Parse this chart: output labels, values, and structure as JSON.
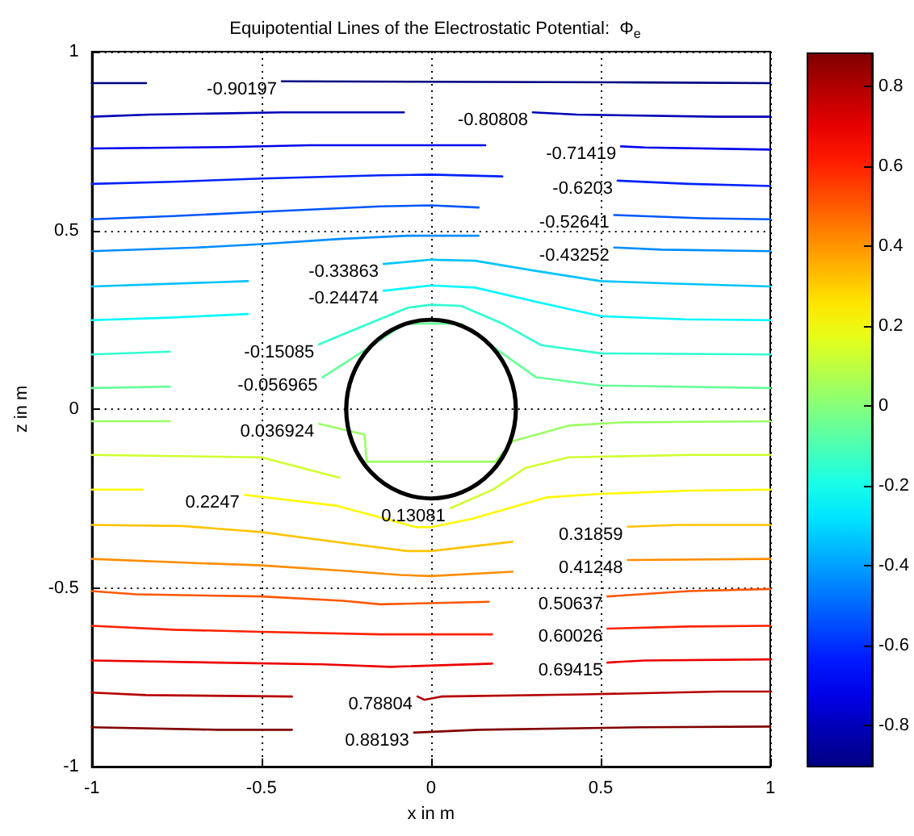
{
  "chart_data": {
    "type": "line",
    "title": "Equipotential Lines of the Electrostatic Potential:  Φ$_{e}$",
    "xlabel": "x in m",
    "ylabel": "z in m",
    "xlim": [
      -1,
      1
    ],
    "xticks": [
      -1,
      -0.5,
      0,
      0.5,
      1
    ],
    "ylim": [
      -1,
      1
    ],
    "yticks": [
      -1,
      -0.5,
      0,
      0.5,
      1
    ],
    "grid": true,
    "legend": false,
    "marker": "none",
    "line_style": "solid",
    "clim": [
      -0.90197,
      0.88193
    ],
    "cticks": [
      -0.8,
      -0.6,
      -0.4,
      -0.2,
      0,
      0.2,
      0.4,
      0.6,
      0.8
    ],
    "series": [
      {
        "name": "-0.90197",
        "color": "#000080",
        "x": [
          -1,
          -0.84,
          -0.64,
          -0.44,
          0.61,
          1
        ],
        "values": [
          0.912,
          0.912,
          null,
          0.917,
          0.914,
          0.912
        ]
      },
      {
        "name": "-0.80808",
        "color": "#0000b5",
        "x": [
          -1,
          -0.83,
          -0.44,
          -0.08,
          0.11,
          0.3,
          0.43,
          0.84,
          1
        ],
        "values": [
          0.818,
          0.824,
          0.83,
          0.83,
          null,
          0.83,
          0.824,
          0.818,
          0.818
        ]
      },
      {
        "name": "-0.71419",
        "color": "#0000eb",
        "x": [
          -1,
          -0.6,
          -0.36,
          0.16,
          0.36,
          0.56,
          0.63,
          1
        ],
        "values": [
          0.729,
          0.733,
          0.738,
          0.738,
          null,
          0.735,
          0.732,
          0.726
        ]
      },
      {
        "name": "-0.6203",
        "color": "#0022ff",
        "x": [
          -1,
          -0.76,
          -0.5,
          -0.15,
          0,
          0.21,
          0.38,
          0.55,
          0.76,
          1
        ],
        "values": [
          0.63,
          0.636,
          0.645,
          0.654,
          0.656,
          0.651,
          null,
          0.639,
          0.63,
          0.624
        ]
      },
      {
        "name": "-0.52641",
        "color": "#0057ff",
        "x": [
          -1,
          -0.76,
          -0.5,
          -0.15,
          0,
          0.14,
          0.34,
          0.54,
          0.8,
          1
        ],
        "values": [
          0.531,
          0.54,
          0.552,
          0.567,
          0.57,
          0.564,
          null,
          0.543,
          0.534,
          0.531
        ]
      },
      {
        "name": "-0.43252",
        "color": "#008dff",
        "x": [
          -1,
          -0.69,
          -0.51,
          -0.27,
          -0.07,
          0.14,
          0.34,
          0.54,
          0.68,
          1
        ],
        "values": [
          0.442,
          0.452,
          0.461,
          0.476,
          0.485,
          0.485,
          null,
          0.452,
          0.446,
          0.442
        ]
      },
      {
        "name": "-0.33863",
        "color": "#00c3ff",
        "x": [
          -1,
          -0.54,
          -0.34,
          -0.14,
          0,
          0.13,
          0.3,
          0.5,
          0.72,
          1
        ],
        "values": [
          0.343,
          0.358,
          null,
          0.406,
          0.418,
          0.415,
          0.388,
          0.358,
          0.351,
          0.343
        ]
      },
      {
        "name": "-0.24474",
        "color": "#00f8ff",
        "x": [
          -1,
          -0.77,
          -0.54,
          -0.34,
          -0.14,
          0,
          0.13,
          0.32,
          0.5,
          0.75,
          1
        ],
        "values": [
          0.249,
          0.256,
          0.266,
          null,
          0.331,
          0.346,
          0.34,
          0.298,
          0.26,
          0.251,
          0.249
        ]
      },
      {
        "name": "-0.15085",
        "color": "#2fffd0",
        "x": [
          -1,
          -0.77,
          -0.55,
          -0.33,
          -0.225,
          -0.068,
          0,
          0.088,
          0.213,
          0.324,
          0.5,
          1
        ],
        "values": [
          0.153,
          0.161,
          null,
          0.181,
          0.223,
          0.284,
          0.292,
          0.289,
          0.238,
          0.179,
          0.156,
          0.153
        ]
      },
      {
        "name": "-0.056965",
        "color": "#65ff9a",
        "x": [
          -1,
          -0.77,
          -0.55,
          -0.32,
          -0.21,
          -0.08,
          0,
          0.09,
          0.21,
          0.31,
          0.5,
          1
        ],
        "values": [
          0.059,
          0.063,
          null,
          0.089,
          0.156,
          0.238,
          0.24,
          0.238,
          0.156,
          0.089,
          0.066,
          0.059
        ]
      },
      {
        "name": "0.036924",
        "color": "#9aff65",
        "x": [
          -1,
          -0.77,
          -0.55,
          -0.33,
          -0.196,
          -0.19,
          0.19,
          0.24,
          0.405,
          0.565,
          1
        ],
        "values": [
          -0.034,
          -0.034,
          null,
          -0.041,
          -0.071,
          -0.147,
          -0.147,
          -0.09,
          -0.046,
          -0.037,
          -0.034
        ]
      },
      {
        "name": "0.13081",
        "color": "#d0ff2f",
        "x": [
          -1,
          -0.5,
          -0.27,
          -0.12,
          0.057,
          0.183,
          0.277,
          0.405,
          0.76,
          1
        ],
        "values": [
          -0.128,
          -0.135,
          -0.192,
          null,
          -0.277,
          -0.225,
          -0.165,
          -0.135,
          -0.128,
          -0.128
        ]
      },
      {
        "name": "0.2247",
        "color": "#fff800",
        "x": [
          -1,
          -0.85,
          -0.7,
          -0.55,
          -0.28,
          -0.045,
          0,
          0.12,
          0.34,
          0.5,
          0.76,
          1
        ],
        "values": [
          -0.225,
          -0.225,
          null,
          -0.24,
          -0.27,
          -0.33,
          -0.33,
          -0.307,
          -0.247,
          -0.237,
          -0.228,
          -0.225
        ]
      },
      {
        "name": "0.31859",
        "color": "#ffc300",
        "x": [
          -1,
          -0.73,
          -0.5,
          -0.26,
          -0.07,
          0,
          0.24,
          0.41,
          0.58,
          0.73,
          1
        ],
        "values": [
          -0.324,
          -0.327,
          -0.344,
          -0.374,
          -0.397,
          -0.397,
          -0.371,
          null,
          -0.329,
          -0.324,
          -0.324
        ]
      },
      {
        "name": "0.41248",
        "color": "#ff8d00",
        "x": [
          -1,
          -0.68,
          -0.5,
          -0.26,
          -0.09,
          0,
          0.24,
          0.41,
          0.58,
          1
        ],
        "values": [
          -0.419,
          -0.431,
          -0.437,
          -0.452,
          -0.464,
          -0.467,
          -0.455,
          null,
          -0.422,
          -0.419
        ]
      },
      {
        "name": "0.50637",
        "color": "#ff5700",
        "x": [
          -1,
          -0.87,
          -0.5,
          -0.26,
          -0.15,
          0.17,
          0.35,
          0.52,
          0.76,
          1
        ],
        "values": [
          -0.509,
          -0.518,
          -0.524,
          -0.536,
          -0.546,
          -0.539,
          null,
          -0.524,
          -0.509,
          -0.503
        ]
      },
      {
        "name": "0.60026",
        "color": "#ff2200",
        "x": [
          -1,
          -0.76,
          -0.5,
          -0.15,
          0.18,
          0.35,
          0.52,
          0.76,
          1
        ],
        "values": [
          -0.606,
          -0.617,
          -0.623,
          -0.63,
          -0.63,
          null,
          -0.614,
          -0.608,
          -0.606
        ]
      },
      {
        "name": "0.69415",
        "color": "#eb0000",
        "x": [
          -1,
          -0.63,
          -0.32,
          -0.12,
          0.18,
          0.35,
          0.52,
          0.63,
          1
        ],
        "values": [
          -0.703,
          -0.709,
          -0.714,
          -0.721,
          -0.712,
          null,
          -0.709,
          -0.703,
          -0.7
        ]
      },
      {
        "name": "0.78804",
        "color": "#b50000",
        "x": [
          -1,
          -0.84,
          -0.41,
          -0.22,
          -0.04,
          -0.02,
          0.03,
          0.45,
          0.85,
          1
        ],
        "values": [
          -0.793,
          -0.8,
          -0.804,
          null,
          -0.804,
          -0.813,
          -0.804,
          -0.798,
          -0.79,
          -0.79
        ]
      },
      {
        "name": "0.88193",
        "color": "#800000",
        "x": [
          -1,
          -0.63,
          -0.41,
          -0.22,
          -0.05,
          0.14,
          0.62,
          1
        ],
        "values": [
          -0.89,
          -0.897,
          -0.897,
          null,
          -0.905,
          -0.897,
          -0.89,
          -0.888
        ]
      }
    ]
  }
}
